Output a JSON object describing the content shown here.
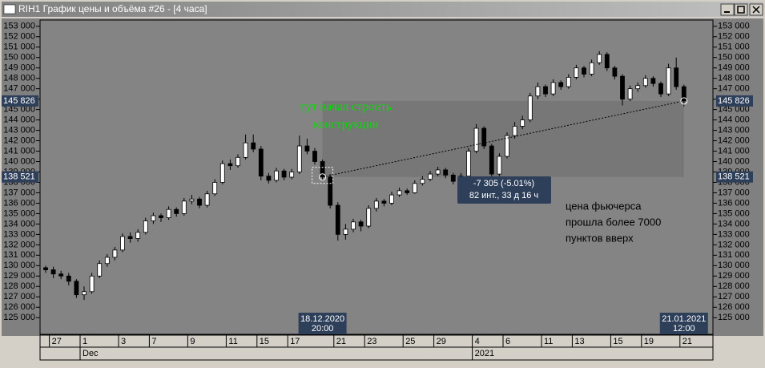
{
  "window": {
    "title": "RIH1 График цены и объёма #26 - [4 часа]"
  },
  "chart_data": {
    "type": "candlestick",
    "up_color": "#ffffff",
    "down_color": "#000000",
    "ohlc": [
      [
        129800,
        130000,
        129300,
        129600
      ],
      [
        129600,
        129900,
        128800,
        129200
      ],
      [
        129200,
        129500,
        128700,
        129000
      ],
      [
        129000,
        129300,
        128100,
        128500
      ],
      [
        128500,
        128700,
        126900,
        127200
      ],
      [
        127200,
        128000,
        126700,
        127500
      ],
      [
        127500,
        129300,
        127300,
        129000
      ],
      [
        129000,
        130500,
        128800,
        130200
      ],
      [
        130200,
        131100,
        129900,
        130800
      ],
      [
        130800,
        131800,
        130500,
        131500
      ],
      [
        131500,
        133100,
        131300,
        132800
      ],
      [
        132800,
        133200,
        132200,
        132600
      ],
      [
        132600,
        133500,
        132300,
        133200
      ],
      [
        133200,
        134600,
        133000,
        134300
      ],
      [
        134300,
        135100,
        134000,
        134800
      ],
      [
        134800,
        135000,
        134200,
        134600
      ],
      [
        134600,
        135700,
        134400,
        135400
      ],
      [
        135400,
        135600,
        134700,
        135000
      ],
      [
        135000,
        136500,
        134800,
        136200
      ],
      [
        136200,
        136800,
        135900,
        136400
      ],
      [
        136400,
        136600,
        135500,
        135800
      ],
      [
        135800,
        137200,
        135600,
        136900
      ],
      [
        136900,
        138300,
        136700,
        138000
      ],
      [
        138000,
        140100,
        137800,
        139800
      ],
      [
        139800,
        140200,
        139200,
        139600
      ],
      [
        139600,
        140700,
        139400,
        140400
      ],
      [
        140400,
        142600,
        140200,
        141800
      ],
      [
        141800,
        142600,
        140900,
        141200
      ],
      [
        141200,
        141500,
        138200,
        138600
      ],
      [
        138600,
        138900,
        137900,
        138200
      ],
      [
        138200,
        139400,
        138000,
        139100
      ],
      [
        139100,
        139300,
        138200,
        138500
      ],
      [
        138500,
        139300,
        138300,
        139000
      ],
      [
        139000,
        142500,
        138800,
        141500
      ],
      [
        141500,
        142200,
        140700,
        141000
      ],
      [
        141000,
        141300,
        139700,
        140000
      ],
      [
        140000,
        140200,
        138200,
        138521
      ],
      [
        138521,
        138800,
        135500,
        135800
      ],
      [
        135800,
        136100,
        132400,
        133000
      ],
      [
        133000,
        134000,
        132500,
        133500
      ],
      [
        133500,
        134500,
        133200,
        134200
      ],
      [
        134200,
        134400,
        133300,
        133800
      ],
      [
        133800,
        135800,
        133600,
        135500
      ],
      [
        135500,
        136500,
        135200,
        136200
      ],
      [
        136200,
        136400,
        135700,
        136000
      ],
      [
        136000,
        137100,
        135800,
        136800
      ],
      [
        136800,
        137500,
        136600,
        137200
      ],
      [
        137200,
        137400,
        136800,
        137000
      ],
      [
        137000,
        138200,
        136900,
        137900
      ],
      [
        137900,
        138600,
        137700,
        138300
      ],
      [
        138300,
        139100,
        138100,
        138800
      ],
      [
        138800,
        139500,
        138600,
        139200
      ],
      [
        139200,
        139400,
        138400,
        138700
      ],
      [
        138700,
        138900,
        137800,
        138100
      ],
      [
        138100,
        138900,
        137900,
        138600
      ],
      [
        138600,
        141300,
        138400,
        141000
      ],
      [
        141000,
        143600,
        140800,
        143200
      ],
      [
        143200,
        143400,
        141200,
        141500
      ],
      [
        141500,
        141700,
        138300,
        138800
      ],
      [
        138800,
        140800,
        138600,
        140500
      ],
      [
        140500,
        142800,
        140300,
        142500
      ],
      [
        142500,
        143800,
        142200,
        143400
      ],
      [
        143400,
        144400,
        143100,
        144000
      ],
      [
        144000,
        146600,
        143800,
        146300
      ],
      [
        146300,
        147600,
        146000,
        147200
      ],
      [
        147200,
        147400,
        146200,
        146500
      ],
      [
        146500,
        147900,
        146300,
        147600
      ],
      [
        147600,
        147800,
        146900,
        147200
      ],
      [
        147200,
        148400,
        147000,
        148100
      ],
      [
        148100,
        149300,
        147900,
        149000
      ],
      [
        149000,
        149200,
        148100,
        148400
      ],
      [
        148400,
        149800,
        148200,
        149500
      ],
      [
        149500,
        150600,
        149300,
        150300
      ],
      [
        150300,
        150500,
        148700,
        149000
      ],
      [
        149000,
        149200,
        147900,
        148200
      ],
      [
        148200,
        148400,
        145400,
        146000
      ],
      [
        146000,
        147300,
        145800,
        147000
      ],
      [
        147000,
        147600,
        146700,
        147300
      ],
      [
        147300,
        148300,
        147100,
        148000
      ],
      [
        148000,
        148200,
        147200,
        147500
      ],
      [
        147500,
        147700,
        146200,
        146500
      ],
      [
        146500,
        149400,
        146300,
        149000
      ],
      [
        149000,
        150000,
        146900,
        147200
      ],
      [
        147200,
        147400,
        145300,
        145826
      ]
    ],
    "categories": [
      null,
      "27",
      null,
      null,
      null,
      "1",
      null,
      null,
      null,
      null,
      "3",
      null,
      null,
      null,
      "7",
      null,
      null,
      null,
      null,
      "9",
      null,
      null,
      null,
      null,
      "11",
      null,
      null,
      null,
      "15",
      null,
      null,
      null,
      "17",
      null,
      null,
      null,
      null,
      null,
      "21",
      null,
      null,
      null,
      "23",
      null,
      null,
      null,
      null,
      "25",
      null,
      null,
      null,
      "29",
      null,
      null,
      null,
      null,
      "4",
      null,
      null,
      null,
      "6",
      null,
      null,
      null,
      null,
      "11",
      null,
      null,
      null,
      "13",
      null,
      null,
      null,
      null,
      "15",
      null,
      null,
      null,
      "19",
      null,
      null,
      null,
      null,
      "21"
    ],
    "months": [
      null,
      null,
      null,
      null,
      null,
      "Dec",
      null,
      null,
      null,
      null,
      null,
      null,
      null,
      null,
      null,
      null,
      null,
      null,
      null,
      null,
      null,
      null,
      null,
      null,
      null,
      null,
      null,
      null,
      null,
      null,
      null,
      null,
      null,
      null,
      null,
      null,
      null,
      null,
      null,
      null,
      null,
      null,
      null,
      null,
      null,
      null,
      null,
      null,
      null,
      null,
      null,
      null,
      null,
      null,
      null,
      null,
      "2021",
      null,
      null,
      null,
      null,
      null,
      null,
      null,
      null,
      null,
      null,
      null,
      null,
      null,
      null,
      null,
      null,
      null,
      null,
      null,
      null,
      null,
      null,
      null,
      null,
      null,
      null,
      null
    ],
    "ylim": [
      124400,
      153600
    ],
    "yticks": [
      {
        "value": 153000,
        "label": "153 000"
      },
      {
        "value": 152000,
        "label": "152 000"
      },
      {
        "value": 151000,
        "label": "151 000"
      },
      {
        "value": 150000,
        "label": "150 000"
      },
      {
        "value": 149000,
        "label": "149 000"
      },
      {
        "value": 148000,
        "label": "148 000"
      },
      {
        "value": 147000,
        "label": "147 000"
      },
      {
        "value": 146000,
        "label": "146 000"
      },
      {
        "value": 145000,
        "label": "145 000"
      },
      {
        "value": 144000,
        "label": "144 000"
      },
      {
        "value": 143000,
        "label": "143 000"
      },
      {
        "value": 142000,
        "label": "142 000"
      },
      {
        "value": 141000,
        "label": "141 000"
      },
      {
        "value": 140000,
        "label": "140 000"
      },
      {
        "value": 139000,
        "label": "139 000"
      },
      {
        "value": 138000,
        "label": "138 000"
      },
      {
        "value": 137000,
        "label": "137 000"
      },
      {
        "value": 136000,
        "label": "136 000"
      },
      {
        "value": 135000,
        "label": "135 000"
      },
      {
        "value": 134000,
        "label": "134 000"
      },
      {
        "value": 133000,
        "label": "133 000"
      },
      {
        "value": 132000,
        "label": "132 000"
      },
      {
        "value": 131000,
        "label": "131 000"
      },
      {
        "value": 130000,
        "label": "130 000"
      },
      {
        "value": 129000,
        "label": "129 000"
      },
      {
        "value": 128000,
        "label": "128 000"
      },
      {
        "value": 127000,
        "label": "127 000"
      },
      {
        "value": 126000,
        "label": "126 000"
      },
      {
        "value": 125000,
        "label": "125 000"
      }
    ],
    "price_marks": [
      {
        "value": 145826,
        "label": "145 826"
      },
      {
        "value": 138521,
        "label": "138 521"
      }
    ],
    "time_marks": [
      {
        "date": "18.12.2020",
        "time": "20:00"
      },
      {
        "date": "21.01.2021",
        "time": "12:00"
      }
    ],
    "measure": {
      "change": "-7 305 (-5.01%)",
      "span": "82 инт., 33 д 16 ч"
    },
    "annotation": [
      "тут начал строить",
      "конструкции"
    ],
    "note": [
      "цена фьючерса",
      "прошла более 7000",
      "пунктов вверх"
    ]
  }
}
